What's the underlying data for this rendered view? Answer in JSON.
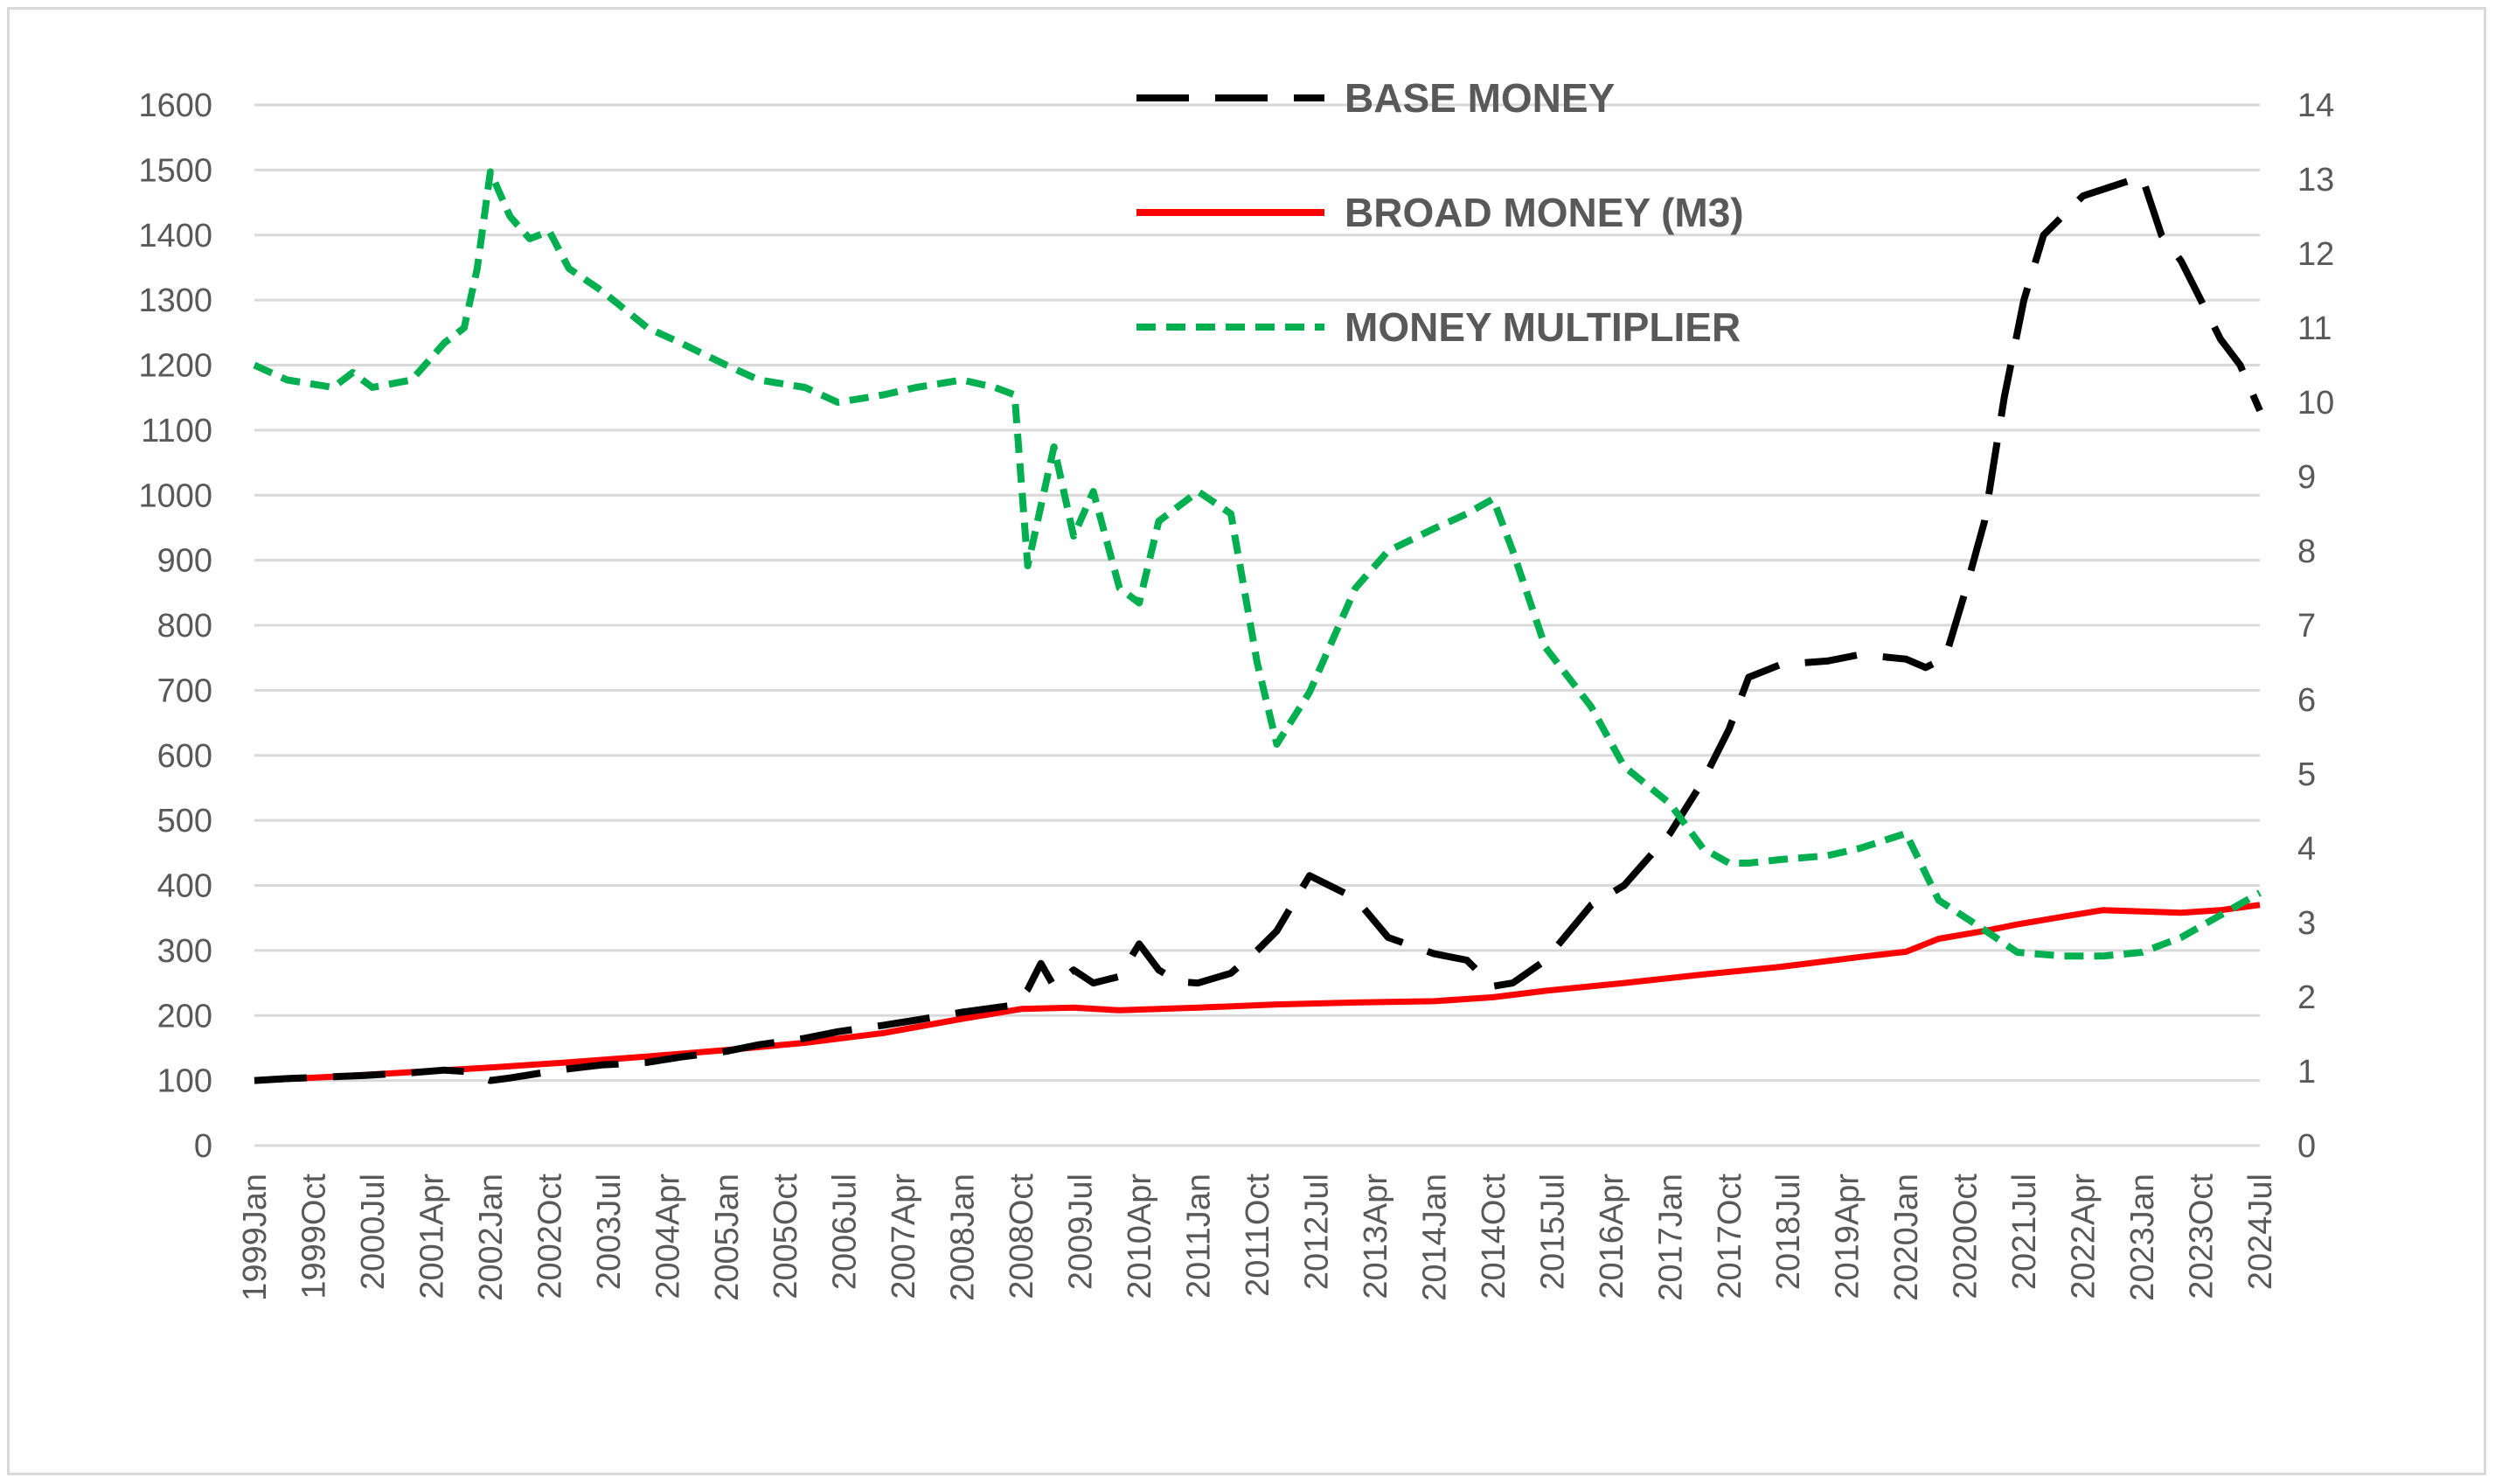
{
  "chart_data": {
    "type": "line",
    "title": "",
    "xlabel": "",
    "ylabel": "",
    "y_left_ticks": [
      "0",
      "100",
      "200",
      "300",
      "400",
      "500",
      "600",
      "700",
      "800",
      "900",
      "1000",
      "1100",
      "1200",
      "1300",
      "1400",
      "1500",
      "1600"
    ],
    "y_right_ticks": [
      "0",
      "1",
      "2",
      "3",
      "4",
      "5",
      "6",
      "7",
      "8",
      "9",
      "10",
      "11",
      "12",
      "13",
      "14"
    ],
    "ylim_left": [
      0,
      1600
    ],
    "ylim_right": [
      0,
      14
    ],
    "x_tick_labels": [
      "1999Jan",
      "1999Oct",
      "2000Jul",
      "2001Apr",
      "2002Jan",
      "2002Oct",
      "2003Jul",
      "2004Apr",
      "2005Jan",
      "2005Oct",
      "2006Jul",
      "2007Apr",
      "2008Jan",
      "2008Oct",
      "2009Jul",
      "2010Apr",
      "2011Jan",
      "2011Oct",
      "2012Jul",
      "2013Apr",
      "2014Jan",
      "2014Oct",
      "2015Jul",
      "2016Apr",
      "2017Jan",
      "2017Oct",
      "2018Jul",
      "2019Apr",
      "2020Jan",
      "2020Oct",
      "2021Jul",
      "2022Apr",
      "2023Jan",
      "2023Oct",
      "2024Jul"
    ],
    "x_start": "1999Jan",
    "x_end": "2024Jul",
    "grid": "horizontal",
    "legend_position": "top-center",
    "series": [
      {
        "name": "BASE MONEY",
        "axis": "left",
        "color": "#000000",
        "style": "long-dash",
        "x": [
          "1999-01",
          "1999-06",
          "2000-01",
          "2000-06",
          "2001-01",
          "2001-06",
          "2001-09",
          "2002-01",
          "2002-04",
          "2002-09",
          "2003-01",
          "2003-06",
          "2004-01",
          "2004-06",
          "2005-01",
          "2005-06",
          "2006-01",
          "2006-06",
          "2007-01",
          "2007-06",
          "2008-01",
          "2008-06",
          "2008-09",
          "2008-11",
          "2009-01",
          "2009-03",
          "2009-06",
          "2009-09",
          "2010-01",
          "2010-04",
          "2010-07",
          "2010-10",
          "2011-01",
          "2011-06",
          "2011-10",
          "2012-01",
          "2012-06",
          "2012-09",
          "2013-01",
          "2013-06",
          "2014-01",
          "2014-06",
          "2014-10",
          "2015-01",
          "2015-06",
          "2016-01",
          "2016-06",
          "2017-01",
          "2017-06",
          "2017-10",
          "2018-01",
          "2018-06",
          "2019-01",
          "2019-06",
          "2020-01",
          "2020-04",
          "2020-07",
          "2020-10",
          "2021-01",
          "2021-04",
          "2021-07",
          "2021-10",
          "2022-01",
          "2022-04",
          "2022-07",
          "2022-10",
          "2023-01",
          "2023-04",
          "2023-07",
          "2023-10",
          "2024-01",
          "2024-04",
          "2024-07"
        ],
        "y": [
          100,
          103,
          106,
          108,
          112,
          116,
          114,
          100,
          104,
          112,
          118,
          124,
          128,
          136,
          145,
          155,
          165,
          175,
          185,
          193,
          205,
          212,
          216,
          240,
          280,
          245,
          270,
          250,
          260,
          310,
          270,
          252,
          250,
          265,
          300,
          330,
          415,
          400,
          380,
          320,
          295,
          285,
          245,
          250,
          285,
          370,
          400,
          480,
          560,
          640,
          720,
          740,
          745,
          755,
          748,
          735,
          750,
          850,
          960,
          1150,
          1300,
          1400,
          1430,
          1460,
          1470,
          1480,
          1490,
          1400,
          1360,
          1300,
          1240,
          1200,
          1130
        ]
      },
      {
        "name": "BROAD MONEY (M3)",
        "axis": "left",
        "color": "#ff0000",
        "style": "solid",
        "x": [
          "1999-01",
          "2000-01",
          "2001-01",
          "2002-01",
          "2003-01",
          "2004-01",
          "2005-01",
          "2006-01",
          "2007-01",
          "2008-01",
          "2008-10",
          "2009-06",
          "2010-01",
          "2011-01",
          "2012-01",
          "2013-01",
          "2014-01",
          "2014-10",
          "2015-06",
          "2016-06",
          "2017-06",
          "2018-06",
          "2019-06",
          "2020-01",
          "2020-06",
          "2021-01",
          "2021-06",
          "2022-01",
          "2022-07",
          "2023-01",
          "2023-07",
          "2024-01",
          "2024-07"
        ],
        "y": [
          100,
          106,
          113,
          120,
          128,
          137,
          147,
          158,
          173,
          195,
          210,
          212,
          208,
          212,
          217,
          220,
          222,
          228,
          238,
          250,
          263,
          275,
          290,
          298,
          318,
          330,
          340,
          352,
          362,
          360,
          358,
          362,
          370
        ]
      },
      {
        "name": "MONEY MULTIPLIER",
        "axis": "right",
        "color": "#00b050",
        "style": "short-dash",
        "x": [
          "1999-01",
          "1999-06",
          "2000-01",
          "2000-04",
          "2000-07",
          "2001-01",
          "2001-06",
          "2001-09",
          "2001-11",
          "2002-01",
          "2002-04",
          "2002-07",
          "2002-10",
          "2003-01",
          "2003-06",
          "2004-01",
          "2004-06",
          "2005-01",
          "2005-06",
          "2006-01",
          "2006-06",
          "2007-01",
          "2007-06",
          "2008-01",
          "2008-06",
          "2008-09",
          "2008-11",
          "2009-03",
          "2009-06",
          "2009-09",
          "2010-01",
          "2010-04",
          "2010-07",
          "2011-01",
          "2011-06",
          "2011-10",
          "2012-01",
          "2012-06",
          "2013-01",
          "2013-06",
          "2014-01",
          "2014-06",
          "2014-10",
          "2015-01",
          "2015-06",
          "2016-01",
          "2016-06",
          "2017-01",
          "2017-06",
          "2017-10",
          "2018-01",
          "2018-06",
          "2019-01",
          "2019-06",
          "2020-01",
          "2020-06",
          "2021-01",
          "2021-06",
          "2022-01",
          "2022-07",
          "2023-01",
          "2023-07",
          "2024-01",
          "2024-07"
        ],
        "y": [
          10.5,
          10.3,
          10.2,
          10.4,
          10.2,
          10.3,
          10.8,
          11.0,
          11.8,
          13.1,
          12.5,
          12.2,
          12.3,
          11.8,
          11.5,
          11.0,
          10.8,
          10.5,
          10.3,
          10.2,
          10.0,
          10.1,
          10.2,
          10.3,
          10.2,
          10.1,
          7.8,
          9.4,
          8.2,
          8.8,
          7.5,
          7.3,
          8.4,
          8.8,
          8.5,
          6.5,
          5.4,
          6.1,
          7.5,
          8.0,
          8.3,
          8.5,
          8.7,
          8.0,
          6.7,
          5.9,
          5.1,
          4.6,
          4.0,
          3.8,
          3.8,
          3.85,
          3.9,
          4.0,
          4.2,
          3.3,
          2.9,
          2.6,
          2.55,
          2.55,
          2.6,
          2.8,
          3.1,
          3.4
        ]
      }
    ]
  }
}
